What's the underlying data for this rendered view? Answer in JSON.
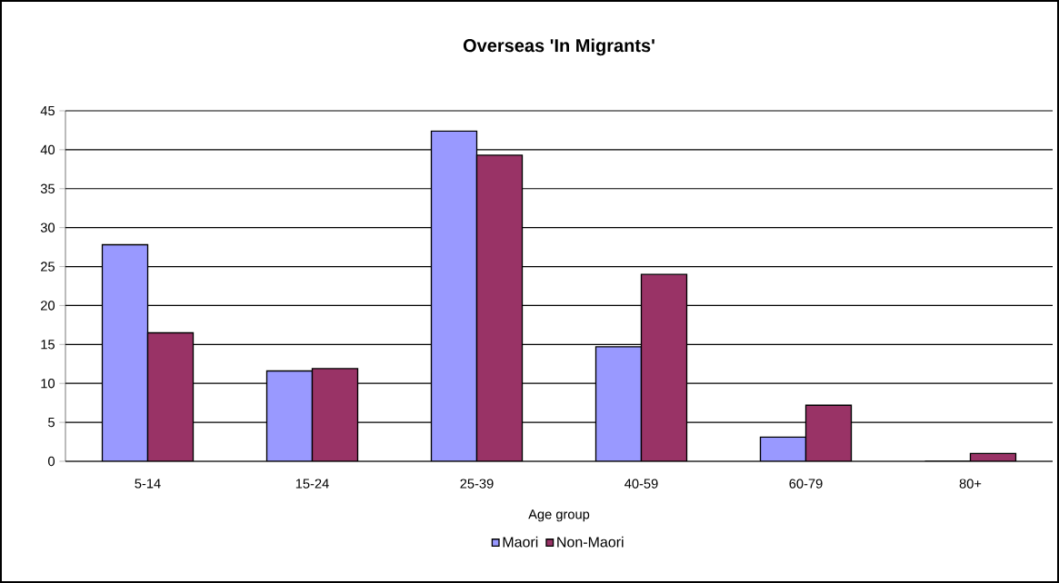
{
  "chart_data": {
    "type": "bar",
    "title": "Overseas 'In Migrants'",
    "xlabel": "Age group",
    "categories": [
      "5-14",
      "15-24",
      "25-39",
      "40-59",
      "60-79",
      "80+"
    ],
    "series": [
      {
        "name": "Maori",
        "color": "#9999ff",
        "values": [
          27.8,
          11.6,
          42.4,
          14.7,
          3.1,
          0
        ]
      },
      {
        "name": "Non-Maori",
        "color": "#993366",
        "values": [
          16.5,
          11.9,
          39.3,
          24.0,
          7.2,
          1.0
        ]
      }
    ],
    "ylim": [
      0,
      45
    ],
    "yticks": [
      0,
      5,
      10,
      15,
      20,
      25,
      30,
      35,
      40,
      45
    ],
    "grid": "y",
    "legend": "bottom"
  }
}
